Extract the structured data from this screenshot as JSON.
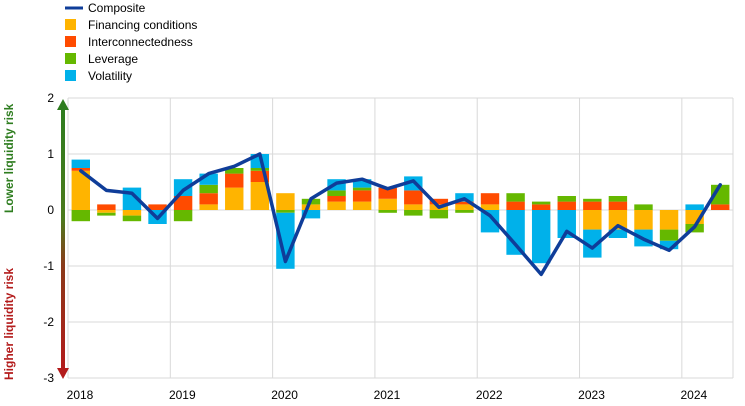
{
  "chart_data": {
    "type": "bar",
    "stacked": true,
    "x": [
      "2018 Q1",
      "2018 Q2",
      "2018 Q3",
      "2018 Q4",
      "2019 Q1",
      "2019 Q2",
      "2019 Q3",
      "2019 Q4",
      "2020 Q1",
      "2020 Q2",
      "2020 Q3",
      "2020 Q4",
      "2021 Q1",
      "2021 Q2",
      "2021 Q3",
      "2021 Q4",
      "2022 Q1",
      "2022 Q2",
      "2022 Q3",
      "2022 Q4",
      "2023 Q1",
      "2023 Q2",
      "2023 Q3",
      "2023 Q4",
      "2024 Q1",
      "2024 Q2"
    ],
    "year_labels": [
      "2018",
      "2019",
      "2020",
      "2021",
      "2022",
      "2023",
      "2024"
    ],
    "ylim": [
      -3,
      2
    ],
    "yticks": [
      2,
      1,
      0,
      -1,
      -2,
      -3
    ],
    "grid": true,
    "legend_position": "top-left",
    "upper_side_label": "Lower liquidity risk",
    "lower_side_label": "Higher liquidity risk",
    "colors": {
      "composite": "#0f3d99",
      "financing": "#ffb400",
      "interconnectedness": "#ff4b00",
      "leverage": "#65b800",
      "volatility": "#00b1ea",
      "upper_arrow": "#2e7d1f",
      "lower_arrow": "#b31b1b",
      "grid": "#d9d9d9"
    },
    "series": [
      {
        "name": "Financing conditions",
        "key": "financing",
        "values": [
          0.7,
          -0.05,
          -0.1,
          0.0,
          0.0,
          0.1,
          0.4,
          0.5,
          0.3,
          0.1,
          0.15,
          0.15,
          0.2,
          0.1,
          0.1,
          0.1,
          0.1,
          0.0,
          0.0,
          0.0,
          -0.35,
          -0.35,
          -0.35,
          -0.35,
          -0.25,
          0.0
        ]
      },
      {
        "name": "Interconnectedness",
        "key": "interconnectedness",
        "values": [
          0.05,
          0.1,
          0.0,
          0.1,
          0.25,
          0.2,
          0.25,
          0.2,
          0.0,
          0.0,
          0.1,
          0.2,
          0.2,
          0.25,
          0.1,
          0.05,
          0.2,
          0.15,
          0.1,
          0.15,
          0.15,
          0.15,
          0.0,
          0.0,
          0.0,
          0.1
        ]
      },
      {
        "name": "Leverage",
        "key": "leverage",
        "values": [
          -0.2,
          -0.05,
          -0.1,
          0.0,
          -0.2,
          0.15,
          0.1,
          0.05,
          -0.05,
          0.1,
          0.1,
          0.05,
          -0.05,
          -0.1,
          -0.15,
          -0.05,
          0.0,
          0.15,
          0.05,
          0.1,
          0.05,
          0.1,
          0.1,
          -0.2,
          -0.15,
          0.35
        ]
      },
      {
        "name": "Volatility",
        "key": "volatility",
        "values": [
          0.15,
          0.0,
          0.4,
          -0.25,
          0.3,
          0.2,
          0.0,
          0.25,
          -1.0,
          -0.15,
          0.2,
          0.15,
          0.0,
          0.25,
          0.0,
          0.15,
          -0.4,
          -0.8,
          -0.95,
          -0.5,
          -0.5,
          -0.15,
          -0.3,
          -0.15,
          0.1,
          0.0
        ]
      }
    ],
    "composite": {
      "name": "Composite",
      "key": "composite",
      "values": [
        0.7,
        0.35,
        0.3,
        -0.15,
        0.35,
        0.65,
        0.78,
        1.0,
        -0.92,
        0.2,
        0.48,
        0.55,
        0.38,
        0.52,
        0.05,
        0.2,
        -0.1,
        -0.62,
        -1.15,
        -0.38,
        -0.68,
        -0.28,
        -0.52,
        -0.72,
        -0.3,
        0.45
      ]
    }
  }
}
